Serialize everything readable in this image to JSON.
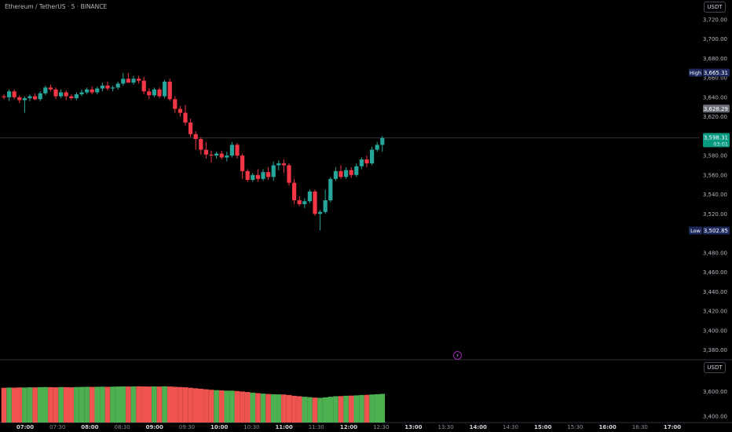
{
  "header": {
    "title": "Ethereum / TetherUS · 5 · BINANCE"
  },
  "price_unit_button": "USDT",
  "volume_unit_button": "USDT",
  "event_icon": "lightning-icon",
  "colors": {
    "up": "#26a69a",
    "down": "#f23645",
    "vol_up": "#4caf50",
    "vol_down": "#ef5350",
    "high_label": "#1e2a5e",
    "current": "#089981",
    "prev": "#6a6d78"
  },
  "price_axis": {
    "ticks": [
      "3,720.00",
      "3,700.00",
      "3,680.00",
      "3,660.00",
      "3,640.00",
      "3,620.00",
      "3,580.00",
      "3,560.00",
      "3,540.00",
      "3,520.00",
      "3,480.00",
      "3,460.00",
      "3,440.00",
      "3,420.00",
      "3,400.00",
      "3,380.00"
    ]
  },
  "volume_axis": {
    "ticks": [
      "3,600.00",
      "3,400.00"
    ]
  },
  "time_axis": {
    "ticks": [
      "07:00",
      "07:30",
      "08:00",
      "08:30",
      "09:00",
      "09:30",
      "10:00",
      "10:30",
      "11:00",
      "11:30",
      "12:00",
      "12:30",
      "13:00",
      "13:30",
      "14:00",
      "14:30",
      "15:00",
      "15:30",
      "16:00",
      "16:30",
      "17:00"
    ],
    "bold": [
      "07:00",
      "08:00",
      "09:00",
      "10:00",
      "11:00",
      "12:00",
      "13:00",
      "14:00",
      "15:00",
      "16:00",
      "17:00"
    ]
  },
  "markers": {
    "high": {
      "label": "High",
      "value": "3,665.31"
    },
    "low": {
      "label": "Low",
      "value": "3,502.85"
    },
    "prev_close": {
      "value": "3,628.29"
    },
    "current": {
      "value": "3,598.31",
      "countdown": "03:01"
    }
  },
  "chart_data": {
    "type": "candlestick",
    "interval": "5m",
    "ylim": [
      3370,
      3740
    ],
    "candles": [
      [
        3641,
        3643,
        3638,
        3640
      ],
      [
        3640,
        3648,
        3636,
        3646
      ],
      [
        3646,
        3648,
        3638,
        3640
      ],
      [
        3640,
        3642,
        3634,
        3637
      ],
      [
        3637,
        3641,
        3624,
        3639
      ],
      [
        3639,
        3643,
        3636,
        3641
      ],
      [
        3641,
        3644,
        3637,
        3638
      ],
      [
        3638,
        3646,
        3636,
        3644
      ],
      [
        3644,
        3652,
        3642,
        3650
      ],
      [
        3650,
        3653,
        3646,
        3648
      ],
      [
        3648,
        3650,
        3638,
        3641
      ],
      [
        3641,
        3648,
        3639,
        3645
      ],
      [
        3645,
        3647,
        3637,
        3641
      ],
      [
        3641,
        3643,
        3637,
        3639
      ],
      [
        3639,
        3645,
        3637,
        3643
      ],
      [
        3643,
        3648,
        3641,
        3645
      ],
      [
        3645,
        3650,
        3643,
        3648
      ],
      [
        3648,
        3651,
        3643,
        3645
      ],
      [
        3645,
        3651,
        3643,
        3649
      ],
      [
        3649,
        3655,
        3646,
        3652
      ],
      [
        3652,
        3656,
        3647,
        3649
      ],
      [
        3649,
        3652,
        3646,
        3650
      ],
      [
        3650,
        3656,
        3648,
        3654
      ],
      [
        3654,
        3665,
        3652,
        3659
      ],
      [
        3659,
        3665,
        3657,
        3655
      ],
      [
        3655,
        3662,
        3653,
        3659
      ],
      [
        3659,
        3662,
        3654,
        3657
      ],
      [
        3657,
        3661,
        3643,
        3646
      ],
      [
        3646,
        3649,
        3638,
        3642
      ],
      [
        3642,
        3650,
        3640,
        3648
      ],
      [
        3648,
        3650,
        3639,
        3641
      ],
      [
        3641,
        3658,
        3639,
        3656
      ],
      [
        3656,
        3659,
        3636,
        3638
      ],
      [
        3638,
        3641,
        3624,
        3628
      ],
      [
        3628,
        3631,
        3620,
        3624
      ],
      [
        3624,
        3632,
        3611,
        3614
      ],
      [
        3614,
        3618,
        3599,
        3602
      ],
      [
        3602,
        3605,
        3586,
        3597
      ],
      [
        3597,
        3599,
        3581,
        3586
      ],
      [
        3586,
        3594,
        3577,
        3581
      ],
      [
        3581,
        3585,
        3573,
        3580
      ],
      [
        3580,
        3584,
        3577,
        3582
      ],
      [
        3582,
        3585,
        3576,
        3578
      ],
      [
        3578,
        3584,
        3574,
        3580
      ],
      [
        3580,
        3594,
        3578,
        3591
      ],
      [
        3591,
        3593,
        3577,
        3580
      ],
      [
        3580,
        3582,
        3556,
        3564
      ],
      [
        3564,
        3566,
        3553,
        3555
      ],
      [
        3555,
        3562,
        3553,
        3560
      ],
      [
        3560,
        3566,
        3553,
        3556
      ],
      [
        3556,
        3566,
        3554,
        3563
      ],
      [
        3563,
        3568,
        3555,
        3558
      ],
      [
        3558,
        3574,
        3554,
        3570
      ],
      [
        3570,
        3575,
        3565,
        3572
      ],
      [
        3572,
        3576,
        3562,
        3570
      ],
      [
        3570,
        3572,
        3549,
        3552
      ],
      [
        3552,
        3556,
        3530,
        3534
      ],
      [
        3534,
        3538,
        3528,
        3530
      ],
      [
        3530,
        3536,
        3526,
        3533
      ],
      [
        3533,
        3545,
        3531,
        3543
      ],
      [
        3543,
        3545,
        3518,
        3520
      ],
      [
        3520,
        3524,
        3503,
        3522
      ],
      [
        3522,
        3545,
        3520,
        3534
      ],
      [
        3534,
        3558,
        3532,
        3556
      ],
      [
        3556,
        3568,
        3554,
        3564
      ],
      [
        3564,
        3570,
        3556,
        3558
      ],
      [
        3558,
        3568,
        3556,
        3565
      ],
      [
        3565,
        3568,
        3557,
        3560
      ],
      [
        3560,
        3572,
        3558,
        3569
      ],
      [
        3569,
        3578,
        3566,
        3576
      ],
      [
        3576,
        3580,
        3568,
        3572
      ],
      [
        3572,
        3589,
        3570,
        3586
      ],
      [
        3586,
        3594,
        3584,
        3591
      ],
      [
        3591,
        3600,
        3584,
        3598
      ]
    ],
    "volume_ylim": [
      3350,
      3780
    ],
    "volume": [
      3630,
      3632,
      3631,
      3633,
      3632,
      3634,
      3633,
      3635,
      3636,
      3635,
      3634,
      3636,
      3635,
      3634,
      3636,
      3637,
      3638,
      3637,
      3638,
      3639,
      3638,
      3639,
      3640,
      3641,
      3640,
      3641,
      3642,
      3641,
      3640,
      3641,
      3640,
      3642,
      3640,
      3638,
      3636,
      3634,
      3630,
      3626,
      3622,
      3618,
      3614,
      3611,
      3609,
      3607,
      3607,
      3604,
      3600,
      3596,
      3591,
      3587,
      3583,
      3580,
      3578,
      3577,
      3576,
      3572,
      3566,
      3562,
      3558,
      3555,
      3551,
      3549,
      3553,
      3558,
      3562,
      3563,
      3566,
      3567,
      3569,
      3572,
      3573,
      3576,
      3578,
      3581
    ]
  }
}
